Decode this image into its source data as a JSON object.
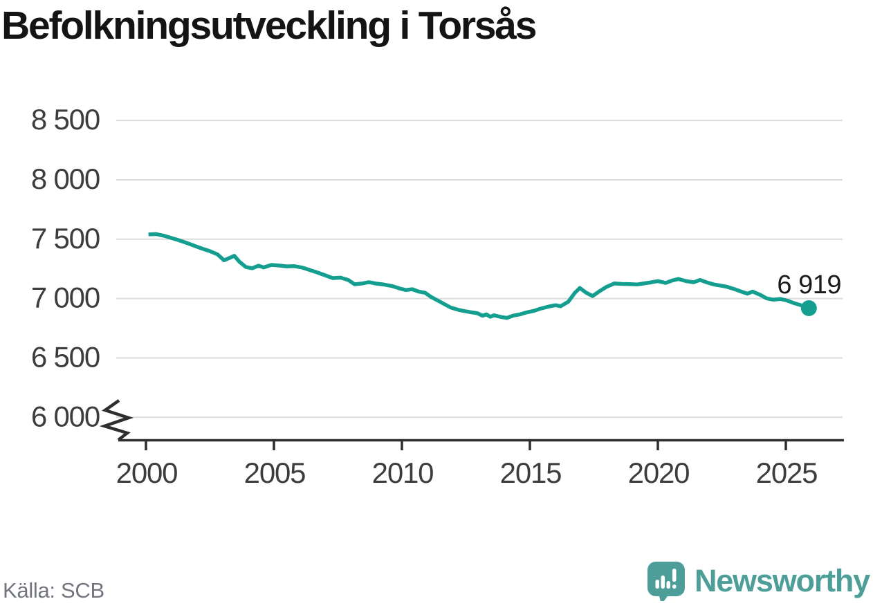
{
  "title": "Befolkningsutveckling i Torsås",
  "source": "Källa: SCB",
  "branding": {
    "logo_text": "Newsworthy",
    "logo_color": "#4d9e99",
    "logo_icon": "speech-bubble-bar-chart-exclamation"
  },
  "colors": {
    "line": "#149e90",
    "grid": "#dcdcdc",
    "axis": "#2e2e2e",
    "axis_text": "#3d3d3d",
    "title_text": "#141414",
    "muted_text": "#72757e"
  },
  "chart_data": {
    "type": "line",
    "title": "Befolkningsutveckling i Torsås",
    "xlabel": "",
    "ylabel": "",
    "grid": "horizontal",
    "legend": "none",
    "axis_break": true,
    "xlim": [
      1998.9,
      2027.2
    ],
    "ylim": [
      6000,
      8500
    ],
    "yticks": [
      {
        "value": 8500,
        "label": "8 500"
      },
      {
        "value": 8000,
        "label": "8 000"
      },
      {
        "value": 7500,
        "label": "7 500"
      },
      {
        "value": 7000,
        "label": "7 000"
      },
      {
        "value": 6500,
        "label": "6 500"
      },
      {
        "value": 6000,
        "label": "6 000"
      }
    ],
    "xticks": [
      {
        "value": 2000,
        "label": "2000"
      },
      {
        "value": 2005,
        "label": "2005"
      },
      {
        "value": 2010,
        "label": "2010"
      },
      {
        "value": 2015,
        "label": "2015"
      },
      {
        "value": 2020,
        "label": "2020"
      },
      {
        "value": 2025,
        "label": "2025"
      }
    ],
    "end_label": "6 919",
    "end_value": 6919,
    "series": [
      {
        "name": "Befolkning i Torsås",
        "x": [
          2000.1,
          2000.4,
          2000.7,
          2001.0,
          2001.3,
          2001.6,
          2001.9,
          2002.2,
          2002.5,
          2002.8,
          2003.05,
          2003.25,
          2003.45,
          2003.65,
          2003.9,
          2004.15,
          2004.4,
          2004.6,
          2004.9,
          2005.2,
          2005.5,
          2005.8,
          2006.1,
          2006.4,
          2006.7,
          2007.0,
          2007.3,
          2007.6,
          2007.9,
          2008.15,
          2008.45,
          2008.7,
          2009.0,
          2009.3,
          2009.6,
          2009.9,
          2010.15,
          2010.4,
          2010.65,
          2010.9,
          2011.15,
          2011.4,
          2011.65,
          2011.9,
          2012.2,
          2012.45,
          2012.7,
          2012.95,
          2013.15,
          2013.3,
          2013.45,
          2013.6,
          2013.85,
          2014.1,
          2014.35,
          2014.6,
          2014.9,
          2015.15,
          2015.4,
          2015.7,
          2016.0,
          2016.2,
          2016.5,
          2016.75,
          2016.95,
          2017.2,
          2017.45,
          2017.7,
          2018.0,
          2018.3,
          2018.6,
          2018.9,
          2019.2,
          2019.5,
          2019.75,
          2020.0,
          2020.3,
          2020.55,
          2020.8,
          2021.1,
          2021.4,
          2021.65,
          2021.9,
          2022.2,
          2022.45,
          2022.7,
          2023.0,
          2023.25,
          2023.5,
          2023.7,
          2024.0,
          2024.25,
          2024.5,
          2024.8,
          2025.05,
          2025.3,
          2025.6,
          2025.9
        ],
        "values": [
          7540,
          7543,
          7529,
          7510,
          7490,
          7468,
          7444,
          7420,
          7399,
          7371,
          7322,
          7340,
          7360,
          7310,
          7266,
          7255,
          7277,
          7262,
          7283,
          7278,
          7271,
          7273,
          7261,
          7240,
          7219,
          7196,
          7172,
          7176,
          7157,
          7120,
          7127,
          7138,
          7126,
          7118,
          7106,
          7086,
          7072,
          7079,
          7059,
          7049,
          7012,
          6983,
          6954,
          6925,
          6905,
          6894,
          6885,
          6876,
          6855,
          6867,
          6847,
          6859,
          6846,
          6837,
          6856,
          6866,
          6885,
          6896,
          6914,
          6931,
          6944,
          6935,
          6973,
          7047,
          7089,
          7049,
          7021,
          7059,
          7099,
          7127,
          7123,
          7121,
          7119,
          7129,
          7137,
          7147,
          7131,
          7151,
          7165,
          7147,
          7137,
          7157,
          7137,
          7118,
          7109,
          7099,
          7079,
          7059,
          7041,
          7059,
          7031,
          7001,
          6991,
          6996,
          6983,
          6963,
          6943,
          6919
        ]
      }
    ]
  }
}
